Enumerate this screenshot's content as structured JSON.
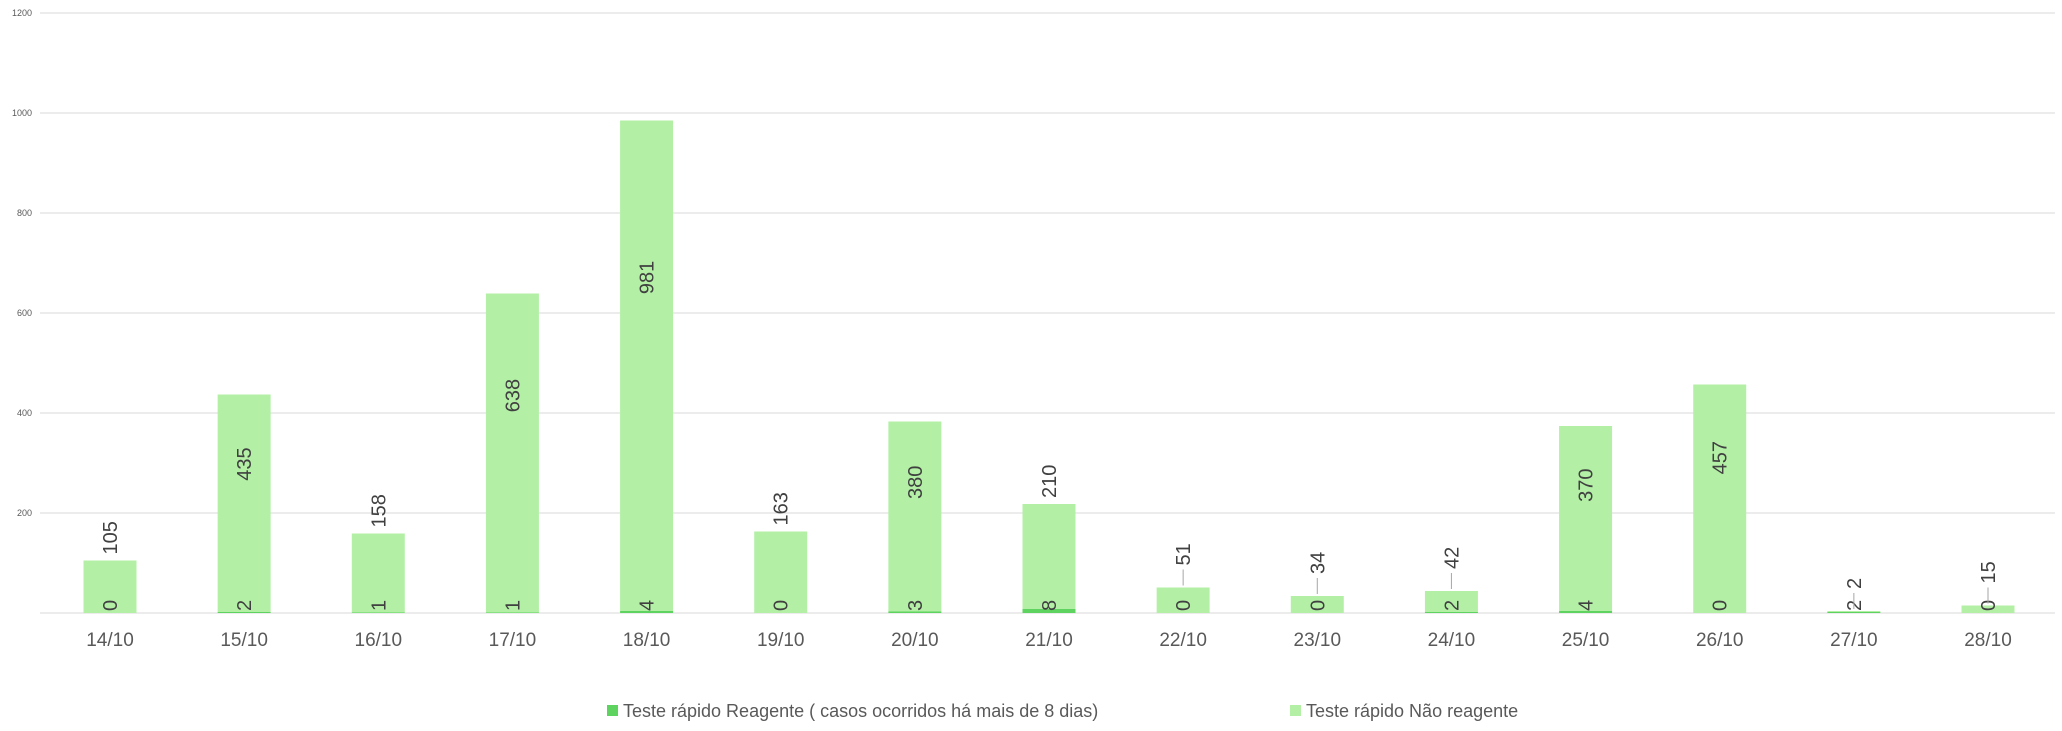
{
  "chart_data": {
    "type": "bar",
    "stacked": true,
    "categories": [
      "14/10",
      "15/10",
      "16/10",
      "17/10",
      "18/10",
      "19/10",
      "20/10",
      "21/10",
      "22/10",
      "23/10",
      "24/10",
      "25/10",
      "26/10",
      "27/10",
      "28/10"
    ],
    "series": [
      {
        "name": "Teste rápido Reagente ( casos ocorridos há mais de 8 dias)",
        "color": "#5fd35f",
        "values": [
          0,
          2,
          1,
          1,
          4,
          0,
          3,
          8,
          0,
          0,
          2,
          4,
          0,
          2,
          0
        ]
      },
      {
        "name": "Teste rápido Não reagente",
        "color": "#b3f0a6",
        "values": [
          105,
          435,
          158,
          638,
          981,
          163,
          380,
          210,
          51,
          34,
          42,
          370,
          457,
          2,
          15
        ]
      }
    ],
    "yticks": [
      200,
      400,
      600,
      800,
      1000,
      1200
    ],
    "ylim": [
      0,
      1200
    ],
    "grid": true,
    "legend": "bottom-center"
  }
}
